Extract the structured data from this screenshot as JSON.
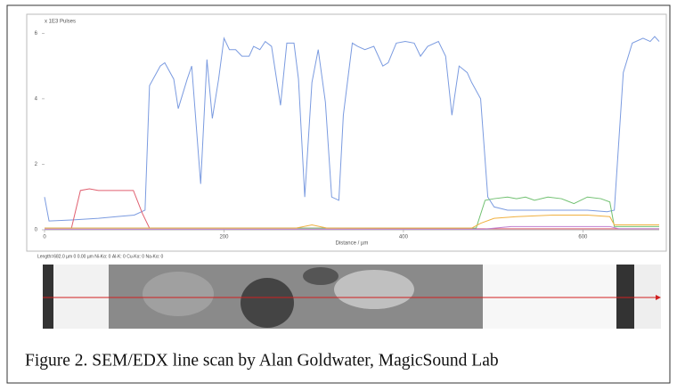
{
  "chart_data": {
    "type": "line",
    "y_label": "x 1E3 Pulses",
    "x_label": "Distance / µm",
    "info_line": "Length=682.0 µm  0  0.00 µm  Ni-Kα: 0  Al-K: 0  Cu-Kα: 0  Na-Kα: 0",
    "caption": "Figure 2. SEM/EDX line scan by Alan Goldwater, MagicSound Lab",
    "xlim": [
      0,
      685
    ],
    "ylim": [
      0,
      6.2
    ],
    "xticks": [
      0,
      200,
      400,
      600
    ],
    "yticks": [
      0,
      2,
      4,
      6
    ],
    "series": [
      {
        "color": "#7b9be0",
        "x": [
          0,
          5,
          30,
          60,
          80,
          100,
          112,
          117,
          129,
          134,
          144,
          149,
          159,
          164,
          174,
          181,
          187,
          194,
          200,
          206,
          213,
          220,
          228,
          233,
          240,
          246,
          253,
          263,
          270,
          278,
          283,
          290,
          298,
          305,
          313,
          320,
          328,
          333,
          343,
          349,
          357,
          367,
          377,
          383,
          392,
          402,
          412,
          419,
          427,
          439,
          447,
          454,
          462,
          471,
          476,
          486,
          494,
          501,
          516,
          546,
          576,
          605,
          627,
          635,
          645,
          655,
          667,
          675,
          680,
          685
        ],
        "values": [
          1.0,
          0.27,
          0.3,
          0.35,
          0.4,
          0.45,
          0.6,
          4.4,
          5.0,
          5.1,
          4.6,
          3.7,
          4.6,
          5.0,
          1.4,
          5.2,
          3.4,
          4.6,
          5.85,
          5.5,
          5.5,
          5.3,
          5.3,
          5.6,
          5.5,
          5.75,
          5.6,
          3.8,
          5.7,
          5.7,
          4.6,
          1.0,
          4.5,
          5.5,
          3.9,
          1.0,
          0.9,
          3.5,
          5.7,
          5.6,
          5.5,
          5.6,
          5.0,
          5.1,
          5.7,
          5.75,
          5.7,
          5.3,
          5.6,
          5.75,
          5.3,
          3.5,
          5.0,
          4.8,
          4.5,
          4.0,
          1.0,
          0.7,
          0.6,
          0.6,
          0.6,
          0.6,
          0.55,
          0.6,
          4.8,
          5.7,
          5.85,
          5.75,
          5.9,
          5.75
        ]
      },
      {
        "color": "#e06070",
        "x": [
          0,
          30,
          40,
          50,
          60,
          69,
          79,
          99,
          109,
          117,
          300,
          500,
          685
        ],
        "values": [
          0.05,
          0.05,
          1.2,
          1.25,
          1.2,
          1.2,
          1.2,
          1.2,
          0.5,
          0.05,
          0.05,
          0.03,
          0.03
        ]
      },
      {
        "color": "#70c070",
        "x": [
          0,
          200,
          481,
          491,
          501,
          516,
          526,
          536,
          546,
          561,
          576,
          590,
          605,
          620,
          630,
          635,
          685
        ],
        "values": [
          0.05,
          0.05,
          0.05,
          0.9,
          0.95,
          1.0,
          0.95,
          1.0,
          0.9,
          1.0,
          0.95,
          0.8,
          1.0,
          0.95,
          0.85,
          0.1,
          0.1
        ]
      },
      {
        "color": "#f0b040",
        "x": [
          0,
          280,
          298,
          315,
          476,
          486,
          501,
          526,
          566,
          605,
          630,
          635,
          685
        ],
        "values": [
          0.05,
          0.05,
          0.15,
          0.05,
          0.05,
          0.2,
          0.35,
          0.4,
          0.45,
          0.45,
          0.4,
          0.15,
          0.15
        ]
      },
      {
        "color": "#c080d0",
        "x": [
          0,
          490,
          520,
          630,
          640,
          685
        ],
        "values": [
          0.02,
          0.02,
          0.1,
          0.1,
          0.03,
          0.03
        ]
      }
    ]
  }
}
